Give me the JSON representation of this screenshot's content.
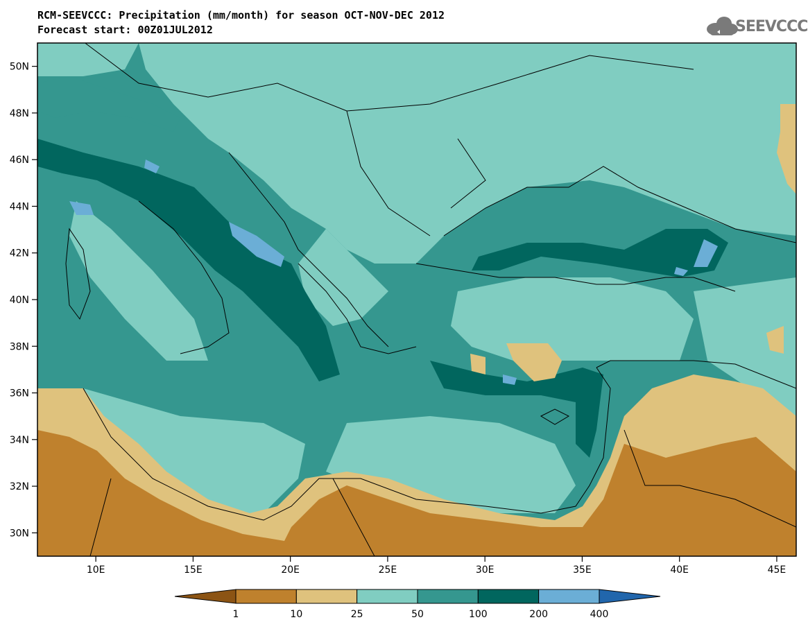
{
  "title": {
    "line1": "RCM-SEEVCCC: Precipitation (mm/month) for season OCT-NOV-DEC 2012",
    "line2": "Forecast start: 00Z01JUL2012"
  },
  "logo": {
    "text": "SEEVCCC",
    "icon": "cloud-icon"
  },
  "map": {
    "lon_range": [
      7,
      46
    ],
    "lat_range": [
      29,
      51
    ],
    "x_ticks": [
      "10E",
      "15E",
      "20E",
      "25E",
      "30E",
      "35E",
      "40E",
      "45E"
    ],
    "y_ticks": [
      "50N",
      "48N",
      "46N",
      "44N",
      "42N",
      "40N",
      "38N",
      "36N",
      "34N",
      "32N",
      "30N"
    ]
  },
  "legend": {
    "levels": [
      "1",
      "10",
      "25",
      "50",
      "100",
      "200",
      "400"
    ],
    "colors": [
      "#8c5414",
      "#bf812d",
      "#dfc27d",
      "#80cdc1",
      "#35978f",
      "#01665e",
      "#6baed6",
      "#2166ac"
    ]
  }
}
